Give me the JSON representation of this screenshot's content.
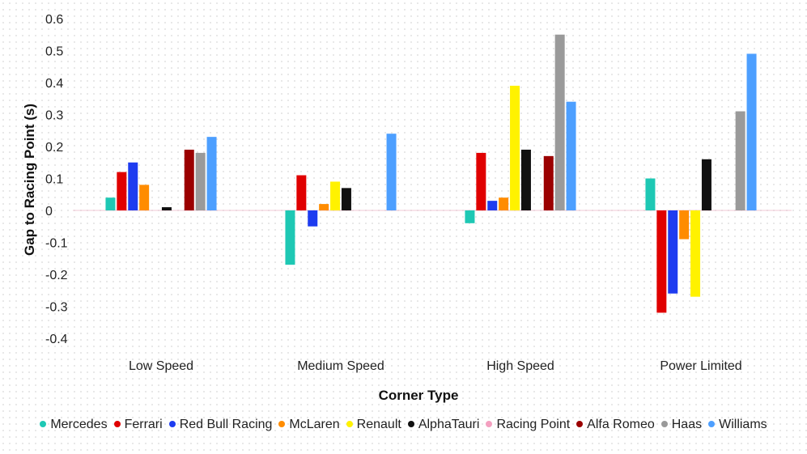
{
  "chart_data": {
    "type": "bar",
    "title": "",
    "xlabel": "Corner Type",
    "ylabel": "Gap to Racing Point (s)",
    "ylim": [
      -0.4,
      0.6
    ],
    "yticks": [
      "0.6",
      "0.5",
      "0.4",
      "0.3",
      "0.2",
      "0.1",
      "0",
      "-0.1",
      "-0.2",
      "-0.3",
      "-0.4"
    ],
    "yticks_values": [
      0.6,
      0.5,
      0.4,
      0.3,
      0.2,
      0.1,
      0,
      -0.1,
      -0.2,
      -0.3,
      -0.4
    ],
    "grid": false,
    "legend_position": "bottom",
    "categories": [
      "Low Speed",
      "Medium Speed",
      "High Speed",
      "Power Limited"
    ],
    "series": [
      {
        "name": "Mercedes",
        "color": "#1ec8b4",
        "values": [
          0.04,
          -0.17,
          -0.04,
          0.1
        ]
      },
      {
        "name": "Ferrari",
        "color": "#e00000",
        "values": [
          0.12,
          0.11,
          0.18,
          -0.32
        ]
      },
      {
        "name": "Red Bull Racing",
        "color": "#1e3cf0",
        "values": [
          0.15,
          -0.05,
          0.03,
          -0.26
        ]
      },
      {
        "name": "McLaren",
        "color": "#ff8c00",
        "values": [
          0.08,
          0.02,
          0.04,
          -0.09
        ]
      },
      {
        "name": "Renault",
        "color": "#fff200",
        "values": [
          0.0,
          0.09,
          0.39,
          -0.27
        ]
      },
      {
        "name": "AlphaTauri",
        "color": "#111111",
        "values": [
          0.01,
          0.07,
          0.19,
          0.16
        ]
      },
      {
        "name": "Racing Point",
        "color": "#f4a0c0",
        "values": [
          0.0,
          0.0,
          0.0,
          0.0
        ]
      },
      {
        "name": "Alfa Romeo",
        "color": "#9b0000",
        "values": [
          0.19,
          0.0,
          0.17,
          0.0
        ]
      },
      {
        "name": "Haas",
        "color": "#9a9a9a",
        "values": [
          0.18,
          0.0,
          0.55,
          0.31
        ]
      },
      {
        "name": "Williams",
        "color": "#4d9fff",
        "values": [
          0.23,
          0.24,
          0.34,
          0.49
        ]
      }
    ]
  }
}
